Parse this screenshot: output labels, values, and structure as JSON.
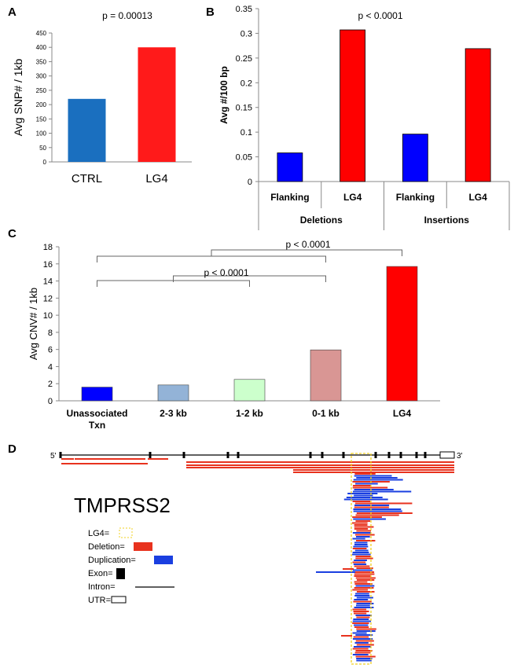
{
  "panels": {
    "A": "A",
    "B": "B",
    "C": "C",
    "D": "D"
  },
  "chart_data": [
    {
      "panel": "A",
      "type": "bar",
      "categories": [
        "CTRL",
        "LG4"
      ],
      "values": [
        220,
        400
      ],
      "colors": [
        "#1a6fbf",
        "#ff1a1a"
      ],
      "annotation": "p = 0.00013",
      "ylabel": "Avg SNP# / 1kb",
      "ylim": [
        0,
        450
      ],
      "yticks": [
        0,
        50,
        100,
        150,
        200,
        250,
        300,
        350,
        400,
        450
      ],
      "grid": false
    },
    {
      "panel": "B",
      "type": "bar",
      "categories": [
        "Flanking",
        "LG4",
        "Flanking",
        "LG4"
      ],
      "groups": [
        "Deletions",
        "Insertions"
      ],
      "values": [
        0.058,
        0.307,
        0.096,
        0.269
      ],
      "colors": [
        "#0000ff",
        "#ff0000",
        "#0000ff",
        "#ff0000"
      ],
      "annotation": "p < 0.0001",
      "ylabel": "Avg #/100 bp",
      "ylim": [
        0,
        0.35
      ],
      "yticks": [
        "0",
        "0.05",
        "0.1",
        "0.15",
        "0.2",
        "0.25",
        "0.3",
        "0.35"
      ],
      "grid": false
    },
    {
      "panel": "C",
      "type": "bar",
      "categories": [
        "Unassociated Txn",
        "2-3 kb",
        "1-2 kb",
        "0-1 kb",
        "LG4"
      ],
      "category_lines": [
        [
          "Unassociated",
          "Txn"
        ],
        [
          "2-3 kb"
        ],
        [
          "1-2 kb"
        ],
        [
          "0-1 kb"
        ],
        [
          "LG4"
        ]
      ],
      "values": [
        1.6,
        1.85,
        2.5,
        5.95,
        15.7
      ],
      "colors": [
        "#0000ff",
        "#93b3d7",
        "#ccffcc",
        "#d99694",
        "#ff0000"
      ],
      "annotations": [
        "p < 0.0001",
        "p < 0.0001"
      ],
      "ylabel": "Avg  CNV# / 1kb",
      "ylim": [
        0,
        18
      ],
      "yticks": [
        0,
        2,
        4,
        6,
        8,
        10,
        12,
        14,
        16,
        18
      ],
      "grid": false
    }
  ],
  "panel_d": {
    "gene": "TMPRSS2",
    "five_prime": "5'",
    "three_prime": "3'",
    "colors": {
      "deletion": "#e8321e",
      "duplication": "#1a3fe0",
      "lg4": "#f0d020",
      "exon": "#000000"
    },
    "legend": [
      {
        "label": "LG4=",
        "swatch": "lg4"
      },
      {
        "label": "Deletion=",
        "swatch": "deletion"
      },
      {
        "label": "Duplication=",
        "swatch": "duplication"
      },
      {
        "label": "Exon=",
        "swatch": "exon"
      },
      {
        "label": "Intron=",
        "swatch": "intron"
      },
      {
        "label": "UTR=",
        "swatch": "utr"
      }
    ]
  }
}
